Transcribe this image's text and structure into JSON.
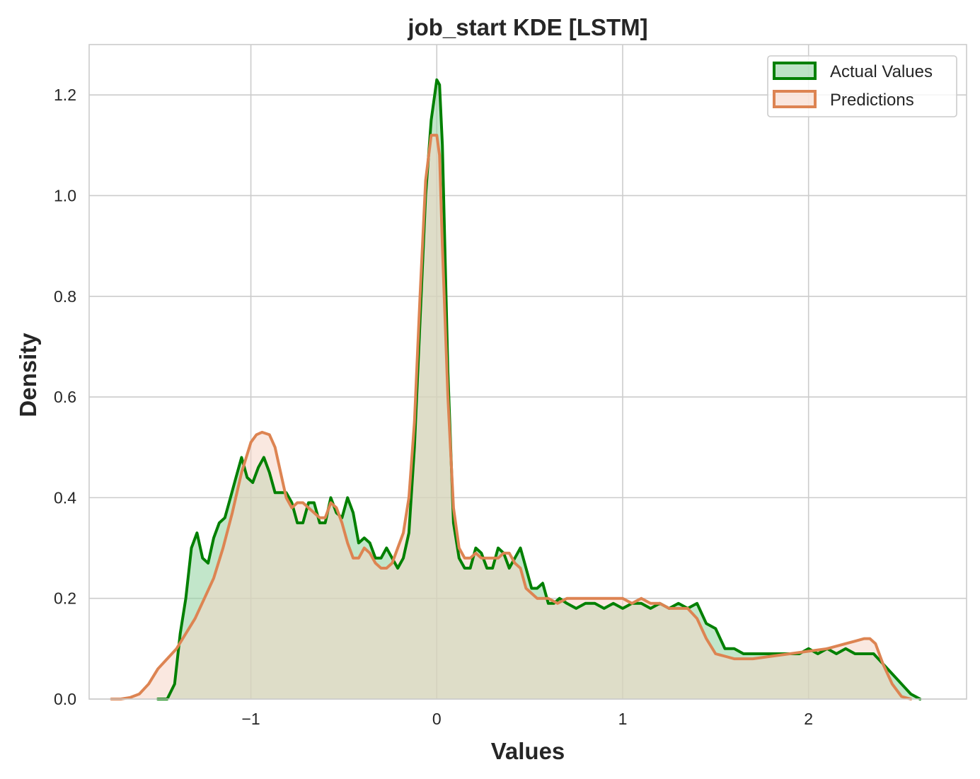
{
  "chart_data": {
    "type": "area",
    "title": "job_start KDE [LSTM]",
    "xlabel": "Values",
    "ylabel": "Density",
    "xlim": [
      -1.87,
      2.85
    ],
    "ylim": [
      0,
      1.3
    ],
    "grid": true,
    "legend_position": "top-right",
    "x_ticks": [
      {
        "value": -1,
        "label": "−1"
      },
      {
        "value": 0,
        "label": "0"
      },
      {
        "value": 1,
        "label": "1"
      },
      {
        "value": 2,
        "label": "2"
      }
    ],
    "y_ticks": [
      {
        "value": 0,
        "label": "0.0"
      },
      {
        "value": 0.2,
        "label": "0.2"
      },
      {
        "value": 0.4,
        "label": "0.4"
      },
      {
        "value": 0.6,
        "label": "0.6"
      },
      {
        "value": 0.8,
        "label": "0.8"
      },
      {
        "value": 1.0,
        "label": "1.0"
      },
      {
        "value": 1.2,
        "label": "1.2"
      }
    ],
    "series": [
      {
        "name": "Actual Values",
        "line_color": "#008000",
        "fill_color": "#8fd19e",
        "x": [
          -1.5,
          -1.45,
          -1.41,
          -1.38,
          -1.35,
          -1.32,
          -1.29,
          -1.26,
          -1.23,
          -1.2,
          -1.17,
          -1.14,
          -1.11,
          -1.08,
          -1.05,
          -1.02,
          -0.99,
          -0.96,
          -0.93,
          -0.9,
          -0.87,
          -0.84,
          -0.81,
          -0.78,
          -0.75,
          -0.72,
          -0.69,
          -0.66,
          -0.63,
          -0.6,
          -0.57,
          -0.54,
          -0.51,
          -0.48,
          -0.45,
          -0.42,
          -0.39,
          -0.36,
          -0.33,
          -0.3,
          -0.27,
          -0.24,
          -0.21,
          -0.18,
          -0.15,
          -0.12,
          -0.09,
          -0.06,
          -0.03,
          0.0,
          0.015,
          0.03,
          0.06,
          0.09,
          0.12,
          0.15,
          0.18,
          0.21,
          0.24,
          0.27,
          0.3,
          0.33,
          0.36,
          0.39,
          0.42,
          0.45,
          0.48,
          0.51,
          0.54,
          0.57,
          0.6,
          0.63,
          0.66,
          0.7,
          0.75,
          0.8,
          0.85,
          0.9,
          0.95,
          1.0,
          1.05,
          1.1,
          1.15,
          1.2,
          1.25,
          1.3,
          1.35,
          1.4,
          1.45,
          1.5,
          1.55,
          1.6,
          1.65,
          1.7,
          1.75,
          1.8,
          1.85,
          1.9,
          1.95,
          2.0,
          2.05,
          2.1,
          2.15,
          2.2,
          2.25,
          2.3,
          2.35,
          2.4,
          2.45,
          2.5,
          2.55,
          2.6
        ],
        "y": [
          0.0,
          0.0,
          0.03,
          0.13,
          0.2,
          0.3,
          0.33,
          0.28,
          0.27,
          0.32,
          0.35,
          0.36,
          0.4,
          0.44,
          0.48,
          0.44,
          0.43,
          0.46,
          0.48,
          0.45,
          0.41,
          0.41,
          0.41,
          0.39,
          0.35,
          0.35,
          0.39,
          0.39,
          0.35,
          0.35,
          0.4,
          0.37,
          0.36,
          0.4,
          0.37,
          0.31,
          0.32,
          0.31,
          0.28,
          0.28,
          0.3,
          0.28,
          0.26,
          0.28,
          0.33,
          0.5,
          0.75,
          1.0,
          1.15,
          1.23,
          1.22,
          1.1,
          0.65,
          0.35,
          0.28,
          0.26,
          0.26,
          0.3,
          0.29,
          0.26,
          0.26,
          0.3,
          0.29,
          0.26,
          0.28,
          0.3,
          0.26,
          0.22,
          0.22,
          0.23,
          0.19,
          0.19,
          0.2,
          0.19,
          0.18,
          0.19,
          0.19,
          0.18,
          0.19,
          0.18,
          0.19,
          0.19,
          0.18,
          0.19,
          0.18,
          0.19,
          0.18,
          0.19,
          0.15,
          0.14,
          0.1,
          0.1,
          0.09,
          0.09,
          0.09,
          0.09,
          0.09,
          0.09,
          0.09,
          0.1,
          0.09,
          0.1,
          0.09,
          0.1,
          0.09,
          0.09,
          0.09,
          0.07,
          0.05,
          0.03,
          0.01,
          0.0
        ]
      },
      {
        "name": "Predictions",
        "line_color": "#dd8452",
        "fill_color": "#f6d6c6",
        "x": [
          -1.75,
          -1.7,
          -1.65,
          -1.6,
          -1.55,
          -1.5,
          -1.45,
          -1.4,
          -1.35,
          -1.3,
          -1.25,
          -1.2,
          -1.15,
          -1.1,
          -1.05,
          -1.0,
          -0.97,
          -0.94,
          -0.9,
          -0.87,
          -0.84,
          -0.81,
          -0.78,
          -0.75,
          -0.72,
          -0.69,
          -0.66,
          -0.63,
          -0.6,
          -0.57,
          -0.54,
          -0.51,
          -0.48,
          -0.45,
          -0.42,
          -0.39,
          -0.36,
          -0.33,
          -0.3,
          -0.27,
          -0.24,
          -0.21,
          -0.18,
          -0.15,
          -0.12,
          -0.09,
          -0.06,
          -0.03,
          0.0,
          0.015,
          0.03,
          0.06,
          0.09,
          0.12,
          0.15,
          0.18,
          0.21,
          0.24,
          0.27,
          0.3,
          0.33,
          0.36,
          0.39,
          0.42,
          0.45,
          0.48,
          0.51,
          0.54,
          0.57,
          0.6,
          0.65,
          0.7,
          0.75,
          0.8,
          0.85,
          0.9,
          0.95,
          1.0,
          1.05,
          1.1,
          1.15,
          1.2,
          1.25,
          1.3,
          1.35,
          1.4,
          1.45,
          1.5,
          1.55,
          1.6,
          1.7,
          1.8,
          1.9,
          2.0,
          2.1,
          2.2,
          2.25,
          2.3,
          2.33,
          2.36,
          2.4,
          2.45,
          2.5,
          2.55
        ],
        "y": [
          0.0,
          0.0,
          0.003,
          0.01,
          0.03,
          0.06,
          0.08,
          0.1,
          0.13,
          0.16,
          0.2,
          0.24,
          0.3,
          0.37,
          0.45,
          0.51,
          0.525,
          0.53,
          0.525,
          0.5,
          0.45,
          0.4,
          0.38,
          0.39,
          0.39,
          0.38,
          0.37,
          0.36,
          0.36,
          0.39,
          0.38,
          0.35,
          0.31,
          0.28,
          0.28,
          0.3,
          0.29,
          0.27,
          0.26,
          0.26,
          0.27,
          0.3,
          0.33,
          0.4,
          0.55,
          0.8,
          1.03,
          1.12,
          1.12,
          1.08,
          0.9,
          0.6,
          0.38,
          0.3,
          0.28,
          0.28,
          0.29,
          0.28,
          0.28,
          0.28,
          0.28,
          0.29,
          0.29,
          0.27,
          0.26,
          0.22,
          0.21,
          0.2,
          0.2,
          0.2,
          0.19,
          0.2,
          0.2,
          0.2,
          0.2,
          0.2,
          0.2,
          0.2,
          0.19,
          0.2,
          0.19,
          0.19,
          0.18,
          0.18,
          0.18,
          0.16,
          0.12,
          0.09,
          0.085,
          0.08,
          0.08,
          0.085,
          0.09,
          0.095,
          0.1,
          0.11,
          0.115,
          0.12,
          0.12,
          0.11,
          0.07,
          0.03,
          0.005,
          0.0
        ]
      }
    ]
  }
}
